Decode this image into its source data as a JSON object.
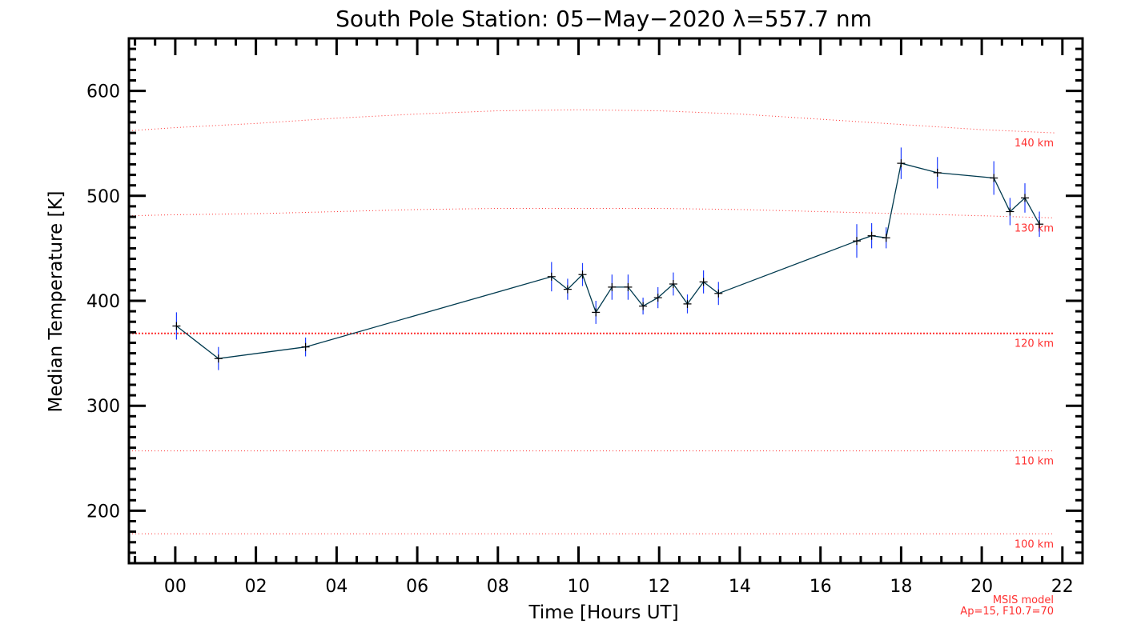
{
  "chart_data": {
    "type": "line",
    "title": "South Pole Station: 05−May−2020 λ=557.7 nm",
    "xlabel": "Time [Hours UT]",
    "ylabel": "Median Temperature [K]",
    "xlim": [
      -1.15,
      22.5
    ],
    "ylim": [
      150,
      650
    ],
    "x_ticks": [
      0,
      2,
      4,
      6,
      8,
      10,
      12,
      14,
      16,
      18,
      20,
      22
    ],
    "x_tick_labels": [
      "00",
      "02",
      "04",
      "06",
      "08",
      "10",
      "12",
      "14",
      "16",
      "18",
      "20",
      "22"
    ],
    "y_ticks": [
      200,
      300,
      400,
      500,
      600
    ],
    "y_tick_labels": [
      "200",
      "300",
      "400",
      "500",
      "600"
    ],
    "series": [
      {
        "name": "Median Temperature",
        "color": "#003a4f",
        "marker": "+",
        "error_color": "#1f3dff",
        "points": [
          {
            "x": 0.03,
            "y": 376,
            "err": 13
          },
          {
            "x": 1.07,
            "y": 345,
            "err": 11
          },
          {
            "x": 3.23,
            "y": 356,
            "err": 9
          },
          {
            "x": 9.33,
            "y": 423,
            "err": 14
          },
          {
            "x": 9.73,
            "y": 411,
            "err": 10
          },
          {
            "x": 10.1,
            "y": 425,
            "err": 11
          },
          {
            "x": 10.43,
            "y": 389,
            "err": 11
          },
          {
            "x": 10.83,
            "y": 413,
            "err": 12
          },
          {
            "x": 11.23,
            "y": 413,
            "err": 12
          },
          {
            "x": 11.6,
            "y": 395,
            "err": 8
          },
          {
            "x": 11.97,
            "y": 403,
            "err": 10
          },
          {
            "x": 12.35,
            "y": 416,
            "err": 11
          },
          {
            "x": 12.7,
            "y": 397,
            "err": 9
          },
          {
            "x": 13.1,
            "y": 418,
            "err": 11
          },
          {
            "x": 13.47,
            "y": 407,
            "err": 11
          },
          {
            "x": 16.9,
            "y": 457,
            "err": 16
          },
          {
            "x": 17.27,
            "y": 462,
            "err": 12
          },
          {
            "x": 17.63,
            "y": 460,
            "err": 10
          },
          {
            "x": 18.0,
            "y": 531,
            "err": 15
          },
          {
            "x": 18.9,
            "y": 522,
            "err": 15
          },
          {
            "x": 20.3,
            "y": 517,
            "err": 16
          },
          {
            "x": 20.7,
            "y": 485,
            "err": 13
          },
          {
            "x": 21.07,
            "y": 498,
            "err": 14
          },
          {
            "x": 21.43,
            "y": 473,
            "err": 12
          }
        ]
      }
    ],
    "msis_model": {
      "color": "#ff3030",
      "lines": [
        {
          "label": "140 km",
          "x": [
            -1.15,
            0.0,
            2.0,
            4.0,
            6.0,
            8.0,
            10.0,
            12.0,
            14.0,
            16.0,
            18.0,
            20.0,
            21.8
          ],
          "y": [
            562,
            565,
            569,
            574,
            578,
            581,
            582,
            581,
            578,
            573,
            568,
            563,
            560
          ]
        },
        {
          "label": "130 km",
          "x": [
            -1.15,
            0.0,
            2.0,
            4.0,
            6.0,
            8.0,
            10.0,
            12.0,
            14.0,
            16.0,
            18.0,
            20.0,
            21.8
          ],
          "y": [
            481,
            482,
            483,
            485,
            487,
            488,
            488,
            488,
            487,
            485,
            483,
            481,
            479
          ]
        },
        {
          "label": "120 km",
          "x": [
            -1.15,
            21.8
          ],
          "y": [
            369,
            369
          ],
          "emphasized": true
        },
        {
          "label": "110 km",
          "x": [
            -1.15,
            21.8
          ],
          "y": [
            257,
            257
          ]
        },
        {
          "label": "100 km",
          "x": [
            -1.15,
            21.8
          ],
          "y": [
            178,
            178
          ]
        }
      ],
      "note_lines": [
        "MSIS model",
        "Ap=15, F10.7=70"
      ]
    }
  }
}
